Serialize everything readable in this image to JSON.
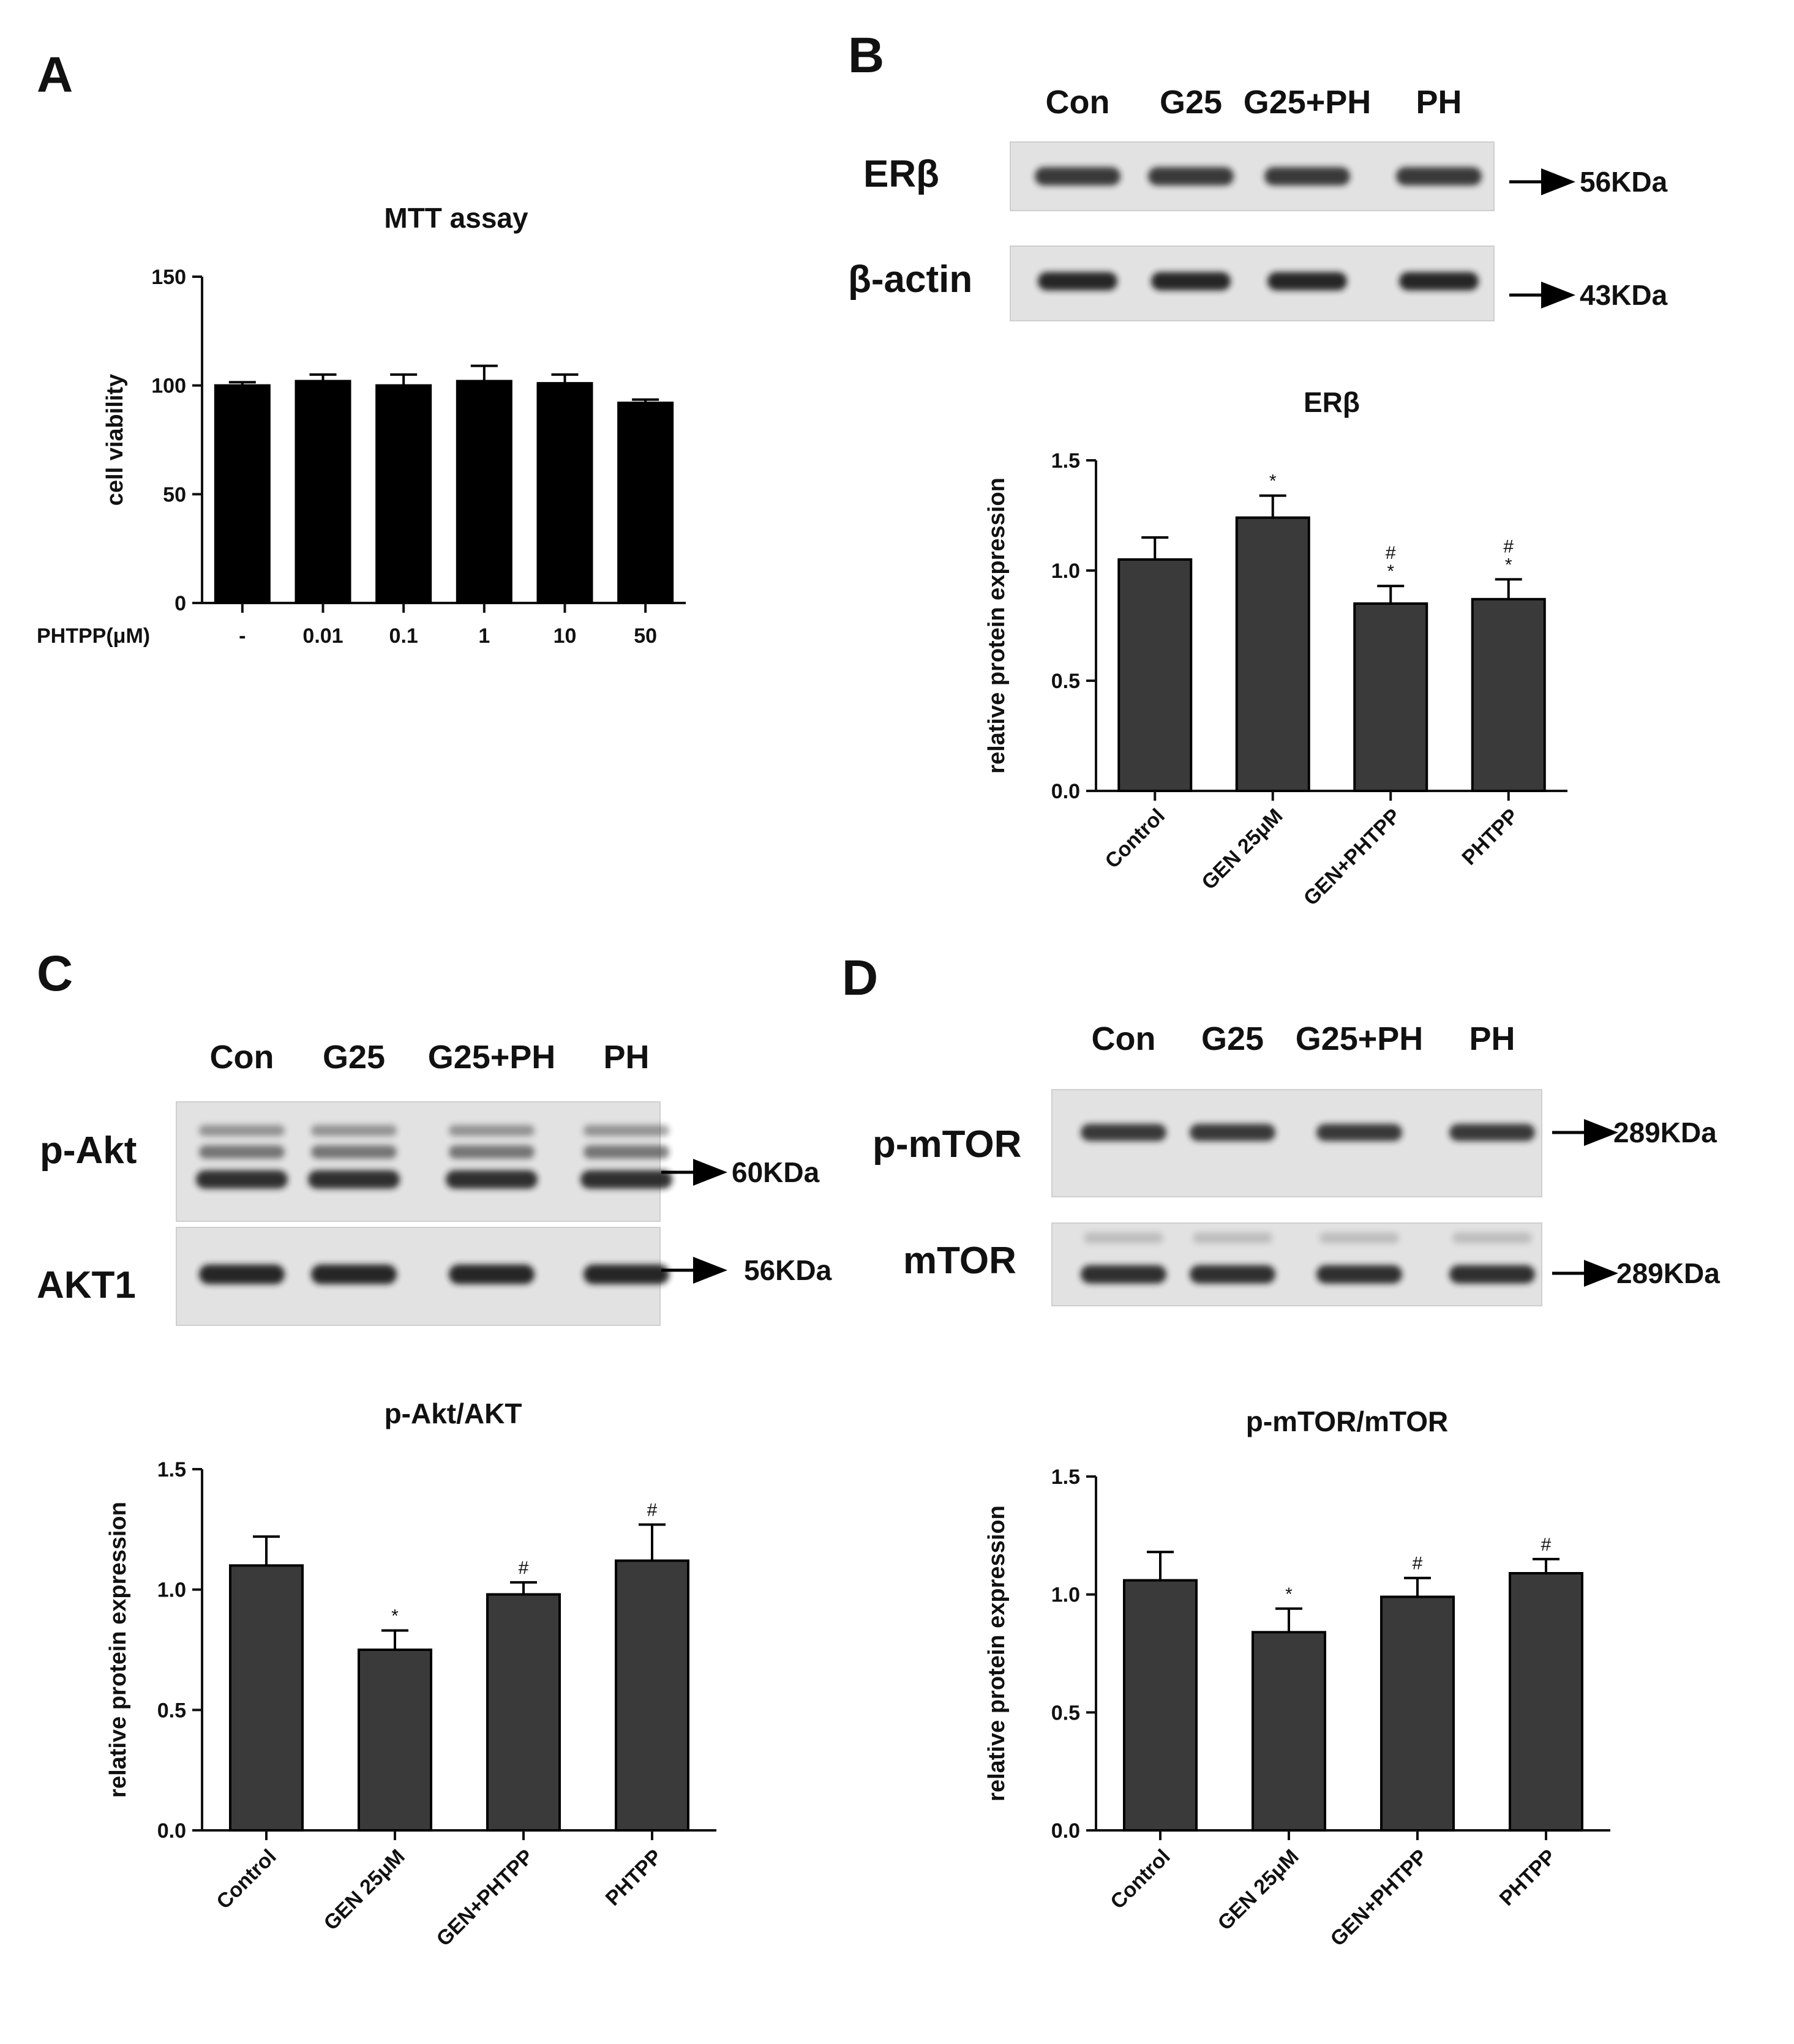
{
  "panels": {
    "A": {
      "letter": "A",
      "chart_data": {
        "type": "bar",
        "title": "MTT assay",
        "ylabel": "cell viability",
        "x_axis_title": "PHTPP(μM)",
        "categories": [
          "-",
          "0.01",
          "0.1",
          "1",
          "10",
          "50"
        ],
        "values": [
          100,
          102,
          100,
          102,
          101,
          92
        ],
        "errors": [
          1.5,
          3,
          5,
          7,
          4,
          1.5
        ],
        "ylim": [
          0,
          150
        ],
        "yticks": [
          "0",
          "50",
          "100",
          "150"
        ],
        "sig": [
          "",
          "",
          "",
          "",
          "",
          ""
        ],
        "bar_color": "#000000"
      }
    },
    "B": {
      "letter": "B",
      "blot": {
        "lanes": [
          "Con",
          "G25",
          "G25+PH",
          "PH"
        ],
        "rows": [
          {
            "protein": "ERβ",
            "kda": "56KDa"
          },
          {
            "protein": "β-actin",
            "kda": "43KDa"
          }
        ]
      },
      "chart_data": {
        "type": "bar",
        "title": "ERβ",
        "ylabel": "relative protein expression",
        "categories": [
          "Control",
          "GEN 25μM",
          "GEN+PHTPP",
          "PHTPP"
        ],
        "values": [
          1.05,
          1.24,
          0.85,
          0.87
        ],
        "errors": [
          0.1,
          0.1,
          0.08,
          0.09
        ],
        "ylim": [
          0,
          1.5
        ],
        "yticks": [
          "0.0",
          "0.5",
          "1.0",
          "1.5"
        ],
        "sig": [
          "",
          "*",
          "#\n*",
          "#\n*"
        ],
        "bar_color": "#3a3a3a"
      }
    },
    "C": {
      "letter": "C",
      "blot": {
        "lanes": [
          "Con",
          "G25",
          "G25+PH",
          "PH"
        ],
        "rows": [
          {
            "protein": "p-Akt",
            "kda": "60KDa"
          },
          {
            "protein": "AKT1",
            "kda": "56KDa"
          }
        ]
      },
      "chart_data": {
        "type": "bar",
        "title": "p-Akt/AKT",
        "ylabel": "relative protein expression",
        "categories": [
          "Control",
          "GEN 25μM",
          "GEN+PHTPP",
          "PHTPP"
        ],
        "values": [
          1.1,
          0.75,
          0.98,
          1.12
        ],
        "errors": [
          0.12,
          0.08,
          0.05,
          0.15
        ],
        "ylim": [
          0,
          1.5
        ],
        "yticks": [
          "0.0",
          "0.5",
          "1.0",
          "1.5"
        ],
        "sig": [
          "",
          "*",
          "#",
          "#"
        ],
        "bar_color": "#3a3a3a"
      }
    },
    "D": {
      "letter": "D",
      "blot": {
        "lanes": [
          "Con",
          "G25",
          "G25+PH",
          "PH"
        ],
        "rows": [
          {
            "protein": "p-mTOR",
            "kda": "289KDa"
          },
          {
            "protein": "mTOR",
            "kda": "289KDa"
          }
        ]
      },
      "chart_data": {
        "type": "bar",
        "title": "p-mTOR/mTOR",
        "ylabel": "relative protein expression",
        "categories": [
          "Control",
          "GEN 25μM",
          "GEN+PHTPP",
          "PHTPP"
        ],
        "values": [
          1.06,
          0.84,
          0.99,
          1.09
        ],
        "errors": [
          0.12,
          0.1,
          0.08,
          0.06
        ],
        "ylim": [
          0,
          1.5
        ],
        "yticks": [
          "0.0",
          "0.5",
          "1.0",
          "1.5"
        ],
        "sig": [
          "",
          "*",
          "#",
          "#"
        ],
        "bar_color": "#3a3a3a"
      }
    }
  }
}
